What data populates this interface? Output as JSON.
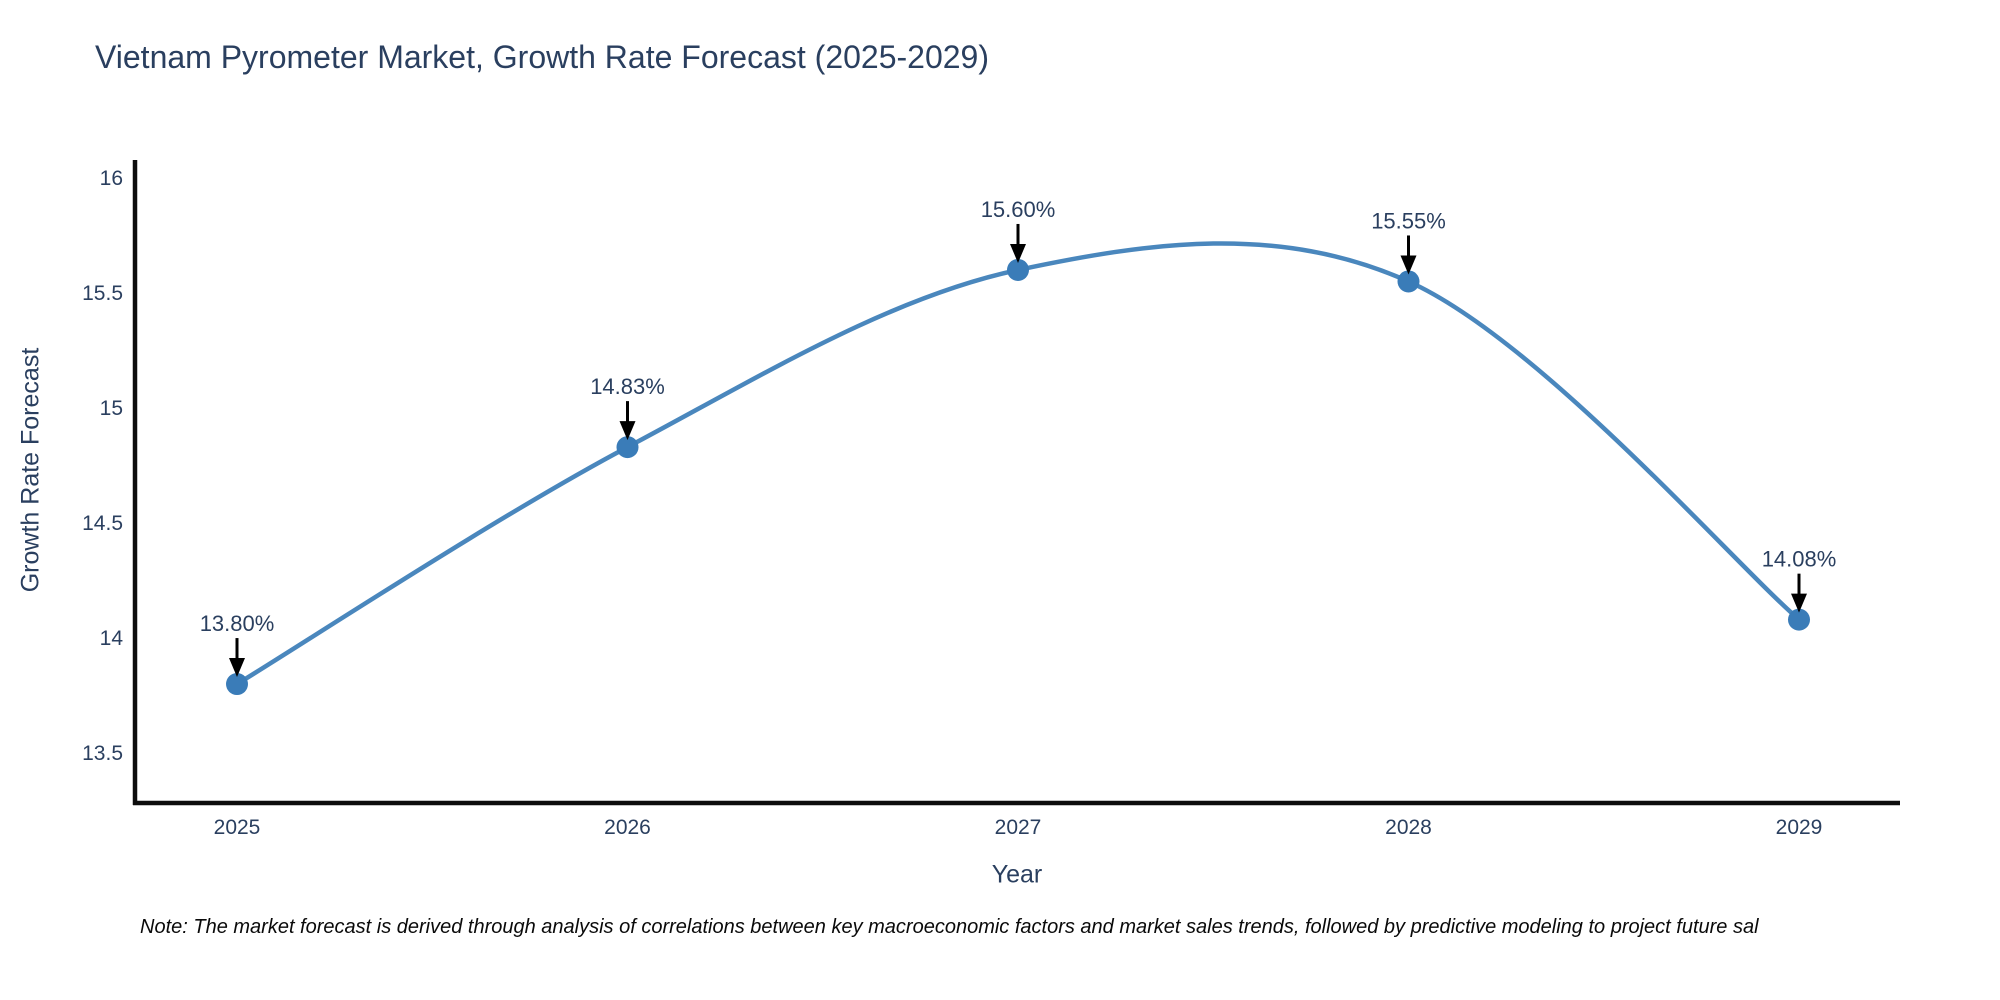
{
  "page": {
    "background_color": "#ffffff"
  },
  "chart": {
    "title": "Vietnam Pyrometer Market, Growth Rate Forecast (2025-2029)",
    "note": "Note: The market forecast is derived through analysis of correlations between key macroeconomic factors and market sales trends, followed by predictive modeling to project future sal",
    "title_color": "#2a3f5f",
    "axis_text_color": "#2a3f5f",
    "axis_line_color": "#0d0d0d"
  },
  "chart_data": {
    "type": "line",
    "title": "Vietnam Pyrometer Market, Growth Rate Forecast (2025-2029)",
    "x": [
      "2025",
      "2026",
      "2027",
      "2028",
      "2029"
    ],
    "y": [
      13.8,
      14.83,
      15.6,
      15.55,
      14.08
    ],
    "point_labels": [
      "13.80%",
      "14.83%",
      "15.60%",
      "15.55%",
      "14.08%"
    ],
    "xlabel": "Year",
    "ylabel": "Growth Rate Forecast",
    "ytick_labels": [
      "13.5",
      "14",
      "14.5",
      "15",
      "15.5",
      "16"
    ],
    "ytick_values": [
      13.5,
      14,
      14.5,
      15,
      15.5,
      16
    ],
    "ylim": [
      13.283,
      16.078
    ],
    "line_shape": "spline",
    "grid": false,
    "legend_position": "none",
    "line_color": "#4a87bd",
    "marker_color": "#3a7cb8",
    "annotation_arrow_color": "#000000",
    "annotation_text_color": "#2a3f5f"
  }
}
